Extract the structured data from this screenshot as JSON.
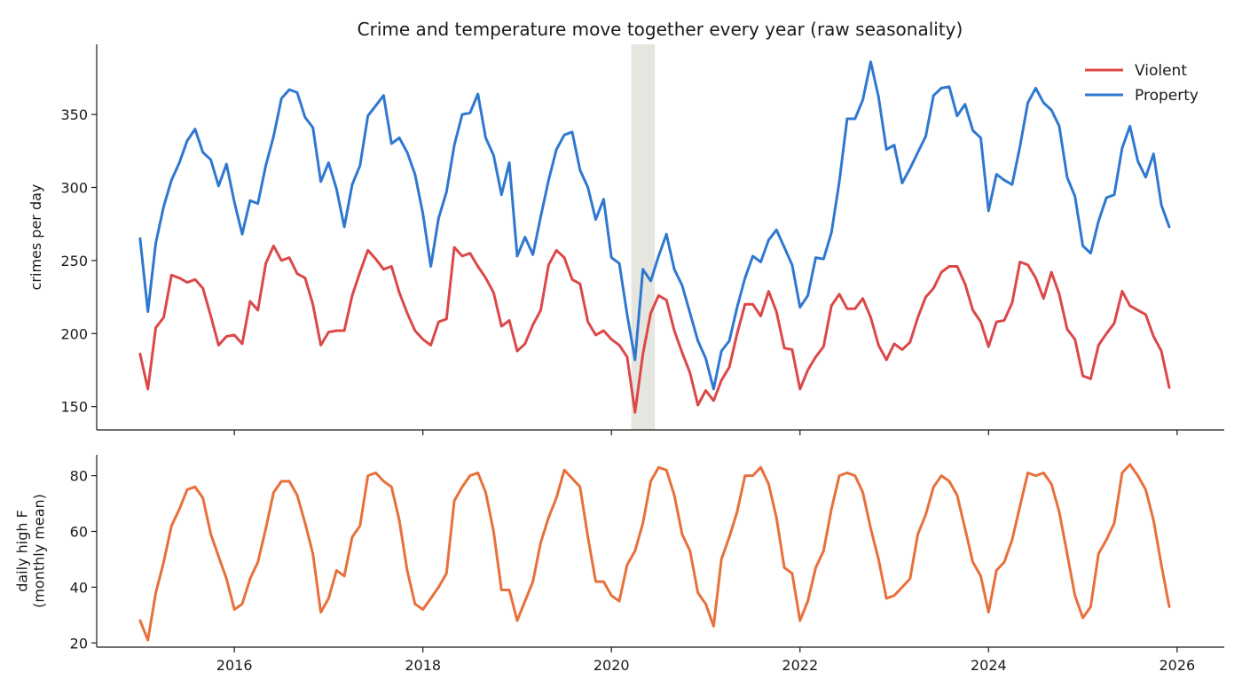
{
  "title": "Crime and temperature move together every year (raw seasonality)",
  "colors": {
    "violent": "#dc4848",
    "property": "#2f78d0",
    "temperature": "#e8703a",
    "shade": "#e6e6e0",
    "axis": "#1a1a1a"
  },
  "chart_data": [
    {
      "type": "line",
      "ylabel": "crimes per day",
      "xlim": [
        2014.54,
        2026.5
      ],
      "ylim": [
        134,
        398
      ],
      "yticks": [
        150,
        200,
        250,
        300,
        350
      ],
      "xticks": [
        2016,
        2018,
        2020,
        2022,
        2024,
        2026
      ],
      "grid": false,
      "legend_position": "top-right",
      "shaded_span": [
        2020.21,
        2020.46
      ],
      "series": [
        {
          "name": "Violent",
          "color": "#dc4848",
          "x_start": 2015.0,
          "x_step": 0.083333,
          "values": [
            186,
            162,
            204,
            211,
            240,
            238,
            235,
            237,
            231,
            212,
            192,
            198,
            199,
            193,
            222,
            216,
            248,
            260,
            250,
            252,
            241,
            238,
            220,
            192,
            201,
            202,
            202,
            226,
            242,
            257,
            251,
            244,
            246,
            228,
            214,
            202,
            196,
            192,
            208,
            210,
            259,
            253,
            255,
            246,
            238,
            228,
            205,
            209,
            188,
            193,
            206,
            216,
            247,
            257,
            252,
            237,
            234,
            208,
            199,
            202,
            196,
            192,
            184,
            146,
            186,
            214,
            226,
            223,
            202,
            187,
            173,
            151,
            161,
            154,
            168,
            177,
            200,
            220,
            220,
            212,
            229,
            215,
            190,
            189,
            162,
            175,
            184,
            191,
            219,
            227,
            217,
            217,
            224,
            211,
            192,
            182,
            193,
            189,
            194,
            211,
            225,
            231,
            242,
            246,
            246,
            234,
            216,
            208,
            191,
            208,
            209,
            221,
            249,
            247,
            238,
            224,
            242,
            227,
            203,
            196,
            171,
            169,
            192,
            200,
            207,
            229,
            219,
            216,
            213,
            198,
            188,
            163
          ]
        },
        {
          "name": "Property",
          "color": "#2f78d0",
          "x_start": 2015.0,
          "x_step": 0.083333,
          "values": [
            265,
            215,
            262,
            287,
            305,
            317,
            332,
            340,
            324,
            319,
            301,
            316,
            290,
            268,
            291,
            289,
            315,
            335,
            361,
            367,
            365,
            348,
            341,
            304,
            317,
            299,
            273,
            302,
            315,
            349,
            356,
            363,
            330,
            334,
            324,
            309,
            282,
            246,
            279,
            297,
            329,
            350,
            351,
            364,
            334,
            322,
            295,
            317,
            253,
            266,
            254,
            280,
            305,
            326,
            336,
            338,
            312,
            300,
            278,
            292,
            252,
            248,
            213,
            182,
            244,
            236,
            253,
            268,
            244,
            233,
            214,
            195,
            183,
            162,
            188,
            195,
            218,
            238,
            253,
            249,
            264,
            271,
            259,
            247,
            218,
            226,
            252,
            251,
            269,
            304,
            347,
            347,
            360,
            386,
            362,
            326,
            329,
            303,
            313,
            324,
            335,
            363,
            368,
            369,
            349,
            357,
            339,
            334,
            284,
            309,
            305,
            302,
            328,
            358,
            368,
            358,
            353,
            342,
            307,
            294,
            260,
            255,
            277,
            293,
            295,
            327,
            342,
            318,
            307,
            323,
            288,
            273
          ]
        }
      ]
    },
    {
      "type": "line",
      "ylabel": "daily high F\n(monthly mean)",
      "xlim": [
        2014.54,
        2026.5
      ],
      "ylim": [
        18.5,
        87.5
      ],
      "yticks": [
        20,
        40,
        60,
        80
      ],
      "xticks": [
        2016,
        2018,
        2020,
        2022,
        2024,
        2026
      ],
      "grid": false,
      "series": [
        {
          "color": "#e8703a",
          "x_start": 2015.0,
          "x_step": 0.083333,
          "values": [
            28,
            21,
            38,
            49,
            62,
            68,
            75,
            76,
            72,
            59,
            51,
            43,
            32,
            34,
            43,
            49,
            61,
            74,
            78,
            78,
            73,
            63,
            52,
            31,
            36,
            46,
            44,
            58,
            62,
            80,
            81,
            78,
            76,
            64,
            46,
            34,
            32,
            36,
            40,
            45,
            71,
            76,
            80,
            81,
            74,
            60,
            39,
            39,
            28,
            35,
            42,
            56,
            65,
            72,
            82,
            79,
            76,
            58,
            42,
            42,
            37,
            35,
            48,
            53,
            63,
            78,
            83,
            82,
            73,
            59,
            53,
            38,
            34,
            26,
            50,
            58,
            67,
            80,
            80,
            83,
            77,
            65,
            47,
            45,
            28,
            35,
            47,
            53,
            68,
            80,
            81,
            80,
            74,
            61,
            50,
            36,
            37,
            40,
            43,
            59,
            66,
            76,
            80,
            78,
            73,
            61,
            49,
            44,
            31,
            46,
            49,
            57,
            69,
            81,
            80,
            81,
            77,
            67,
            52,
            37,
            29,
            33,
            52,
            57,
            63,
            81,
            84,
            80,
            75,
            64,
            48,
            33
          ]
        }
      ]
    }
  ]
}
